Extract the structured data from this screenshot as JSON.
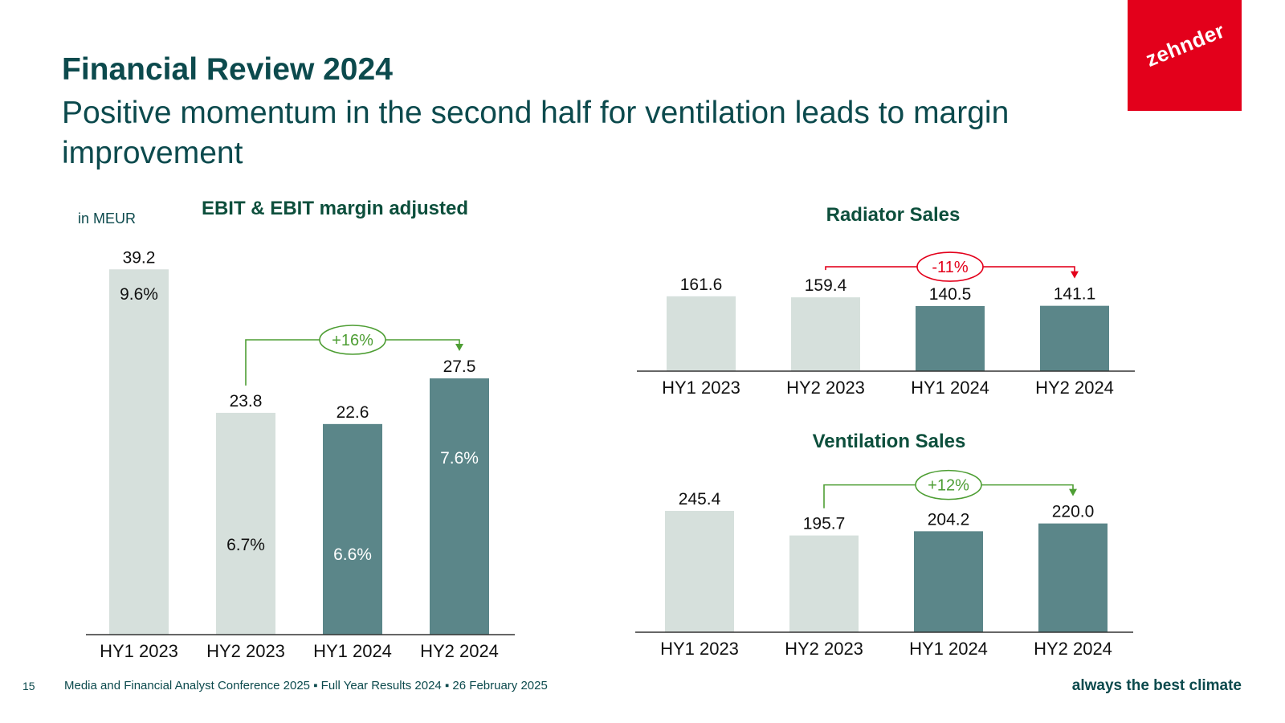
{
  "slide": {
    "title": "Financial Review 2024",
    "subtitle": "Positive momentum in the second half for ventilation leads to margin improvement",
    "logo_text": "zehnder",
    "page_number": "15",
    "footer": "Media and Financial Analyst Conference 2025 ▪ Full Year Results 2024 ▪ 26 February 2025",
    "tagline": "always the best climate"
  },
  "colors": {
    "light_bar": "#d6e0dc",
    "dark_bar": "#5b8689",
    "heading": "#0c4a4d",
    "chart_title": "#0d4f3c",
    "increase": "#4e9e34",
    "decrease": "#e3001b",
    "brand": "#e3001b"
  },
  "chart_data": [
    {
      "type": "bar",
      "title": "EBIT & EBIT margin adjusted",
      "unit_label": "in MEUR",
      "categories": [
        "HY1 2023",
        "HY2 2023",
        "HY1 2024",
        "HY2 2024"
      ],
      "values": [
        39.2,
        23.8,
        22.6,
        27.5
      ],
      "margins": [
        "9.6%",
        "6.7%",
        "6.6%",
        "7.6%"
      ],
      "bar_styles": [
        "light",
        "light",
        "dark",
        "dark"
      ],
      "ylim": [
        0,
        40
      ],
      "change": {
        "label": "+16%",
        "from_index": 1,
        "to_index": 3,
        "direction": "up"
      }
    },
    {
      "type": "bar",
      "title": "Radiator Sales",
      "categories": [
        "HY1 2023",
        "HY2 2023",
        "HY1 2024",
        "HY2 2024"
      ],
      "values": [
        161.6,
        159.4,
        140.5,
        141.1
      ],
      "bar_styles": [
        "light",
        "light",
        "dark",
        "dark"
      ],
      "ylim": [
        0,
        170
      ],
      "change": {
        "label": "-11%",
        "from_index": 1,
        "to_index": 3,
        "direction": "down"
      }
    },
    {
      "type": "bar",
      "title": "Ventilation Sales",
      "categories": [
        "HY1 2023",
        "HY2 2023",
        "HY1 2024",
        "HY2 2024"
      ],
      "values": [
        245.4,
        195.7,
        204.2,
        220.0
      ],
      "bar_styles": [
        "light",
        "light",
        "dark",
        "dark"
      ],
      "ylim": [
        0,
        260
      ],
      "change": {
        "label": "+12%",
        "from_index": 1,
        "to_index": 3,
        "direction": "up"
      }
    }
  ]
}
